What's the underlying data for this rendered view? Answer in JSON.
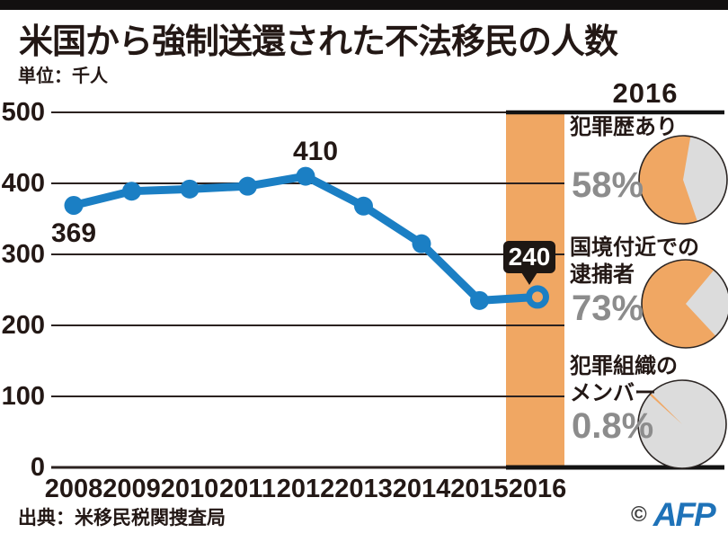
{
  "page": {
    "title": "米国から強制送還された不法移民の人数",
    "unit_label": "単位：千人",
    "source": "出典：米移民税関捜査局",
    "credit_copyright": "©",
    "credit_agency": "AFP"
  },
  "chart_data": {
    "type": "line",
    "title": "米国から強制送還された不法移民の人数",
    "unit": "千人",
    "x": [
      "2008",
      "2009",
      "2010",
      "2011",
      "2012",
      "2013",
      "2014",
      "2015",
      "2016"
    ],
    "values": [
      369,
      389,
      392,
      396,
      410,
      368,
      315,
      235,
      240
    ],
    "ylim": [
      0,
      500
    ],
    "yticks": [
      500,
      400,
      300,
      200,
      100,
      0
    ],
    "grid": true,
    "legend": "none",
    "line_color": "#1b7fc4",
    "highlight": {
      "year": "2016",
      "color": "#f0a763"
    },
    "point_labels": {
      "first": "369",
      "peak": "410",
      "latest": "240"
    }
  },
  "panel": {
    "header": "2016",
    "items": [
      {
        "label": "犯罪歴あり",
        "percent_label": "58%",
        "percent": 58,
        "rotation_deg": 161
      },
      {
        "label": "国境付近での\n逮捕者",
        "percent_label": "73%",
        "percent": 73,
        "rotation_deg": 137
      },
      {
        "label": "犯罪組織の\nメンバー",
        "percent_label": "0.8%",
        "percent": 0.8,
        "rotation_deg": 312
      }
    ],
    "colors": {
      "slice": "#f0a763",
      "remainder": "#dcdcdc",
      "outline": "#2b2523",
      "percent_text": "#8c8c8c"
    }
  }
}
